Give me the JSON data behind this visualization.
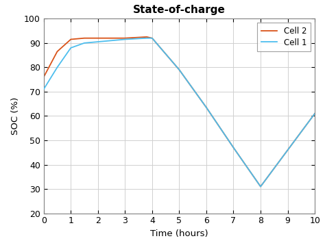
{
  "title": "State-of-charge",
  "xlabel": "Time (hours)",
  "ylabel": "SOC (%)",
  "xlim": [
    0,
    10
  ],
  "ylim": [
    20,
    100
  ],
  "xticks": [
    0,
    1,
    2,
    3,
    4,
    5,
    6,
    7,
    8,
    9,
    10
  ],
  "yticks": [
    20,
    30,
    40,
    50,
    60,
    70,
    80,
    90,
    100
  ],
  "cell1_x": [
    0,
    0.5,
    1.0,
    1.5,
    2.0,
    2.5,
    3.0,
    3.8,
    4.0,
    5.0,
    6.0,
    7.0,
    8.0,
    9.0,
    10.0
  ],
  "cell1_y": [
    71.0,
    80.0,
    88.0,
    90.0,
    90.5,
    91.0,
    91.5,
    92.0,
    92.0,
    79.0,
    63.5,
    47.0,
    31.0,
    46.0,
    61.0
  ],
  "cell2_x": [
    0,
    0.5,
    1.0,
    1.5,
    2.0,
    2.5,
    3.0,
    3.8,
    4.0,
    5.0,
    6.0,
    7.0,
    8.0,
    9.0,
    10.0
  ],
  "cell2_y": [
    76.0,
    86.5,
    91.5,
    92.0,
    92.0,
    92.0,
    92.0,
    92.5,
    92.0,
    79.0,
    63.5,
    47.0,
    31.0,
    46.0,
    61.0
  ],
  "cell1_color": "#4DBEEE",
  "cell2_color": "#D95319",
  "cell1_label": "Cell 1",
  "cell2_label": "Cell 2",
  "line_width": 1.3,
  "grid_color": "#D0D0D0",
  "background_color": "#FFFFFF",
  "legend_loc": "upper right",
  "title_fontsize": 11,
  "label_fontsize": 9.5,
  "tick_fontsize": 9
}
